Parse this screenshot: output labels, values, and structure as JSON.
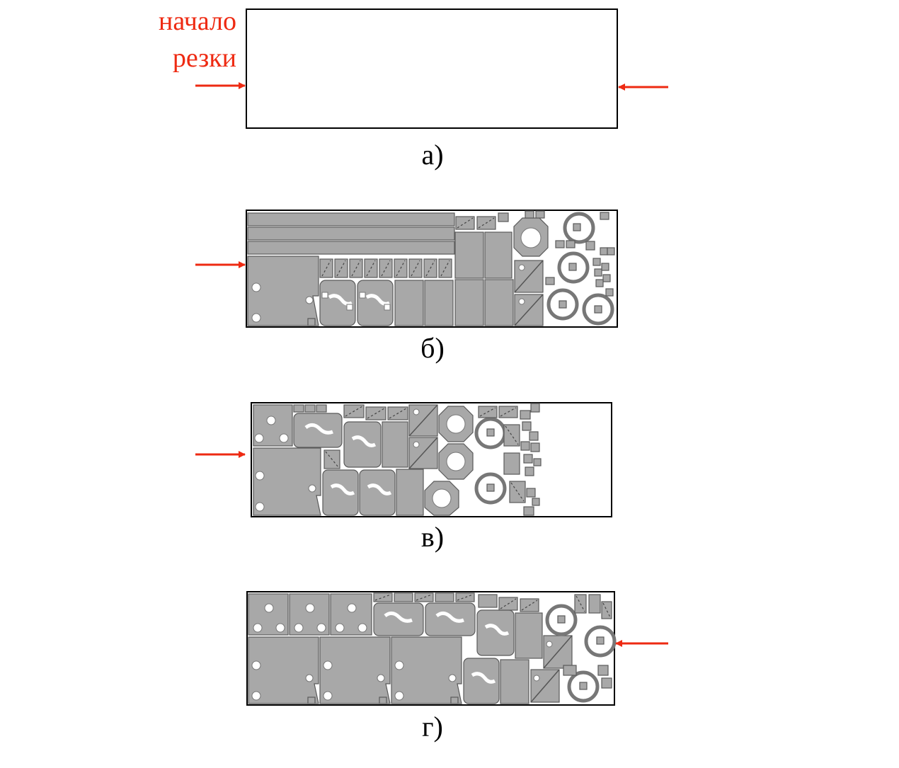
{
  "label": {
    "line1": "начало",
    "line2": "резки",
    "color": "#ee2a12"
  },
  "captions": {
    "a": "а)",
    "b": "б)",
    "v": "в)",
    "g": "г)"
  },
  "colors": {
    "arrow": "#ee2a12",
    "part": "#a8a8a8",
    "outline": "#000000"
  }
}
